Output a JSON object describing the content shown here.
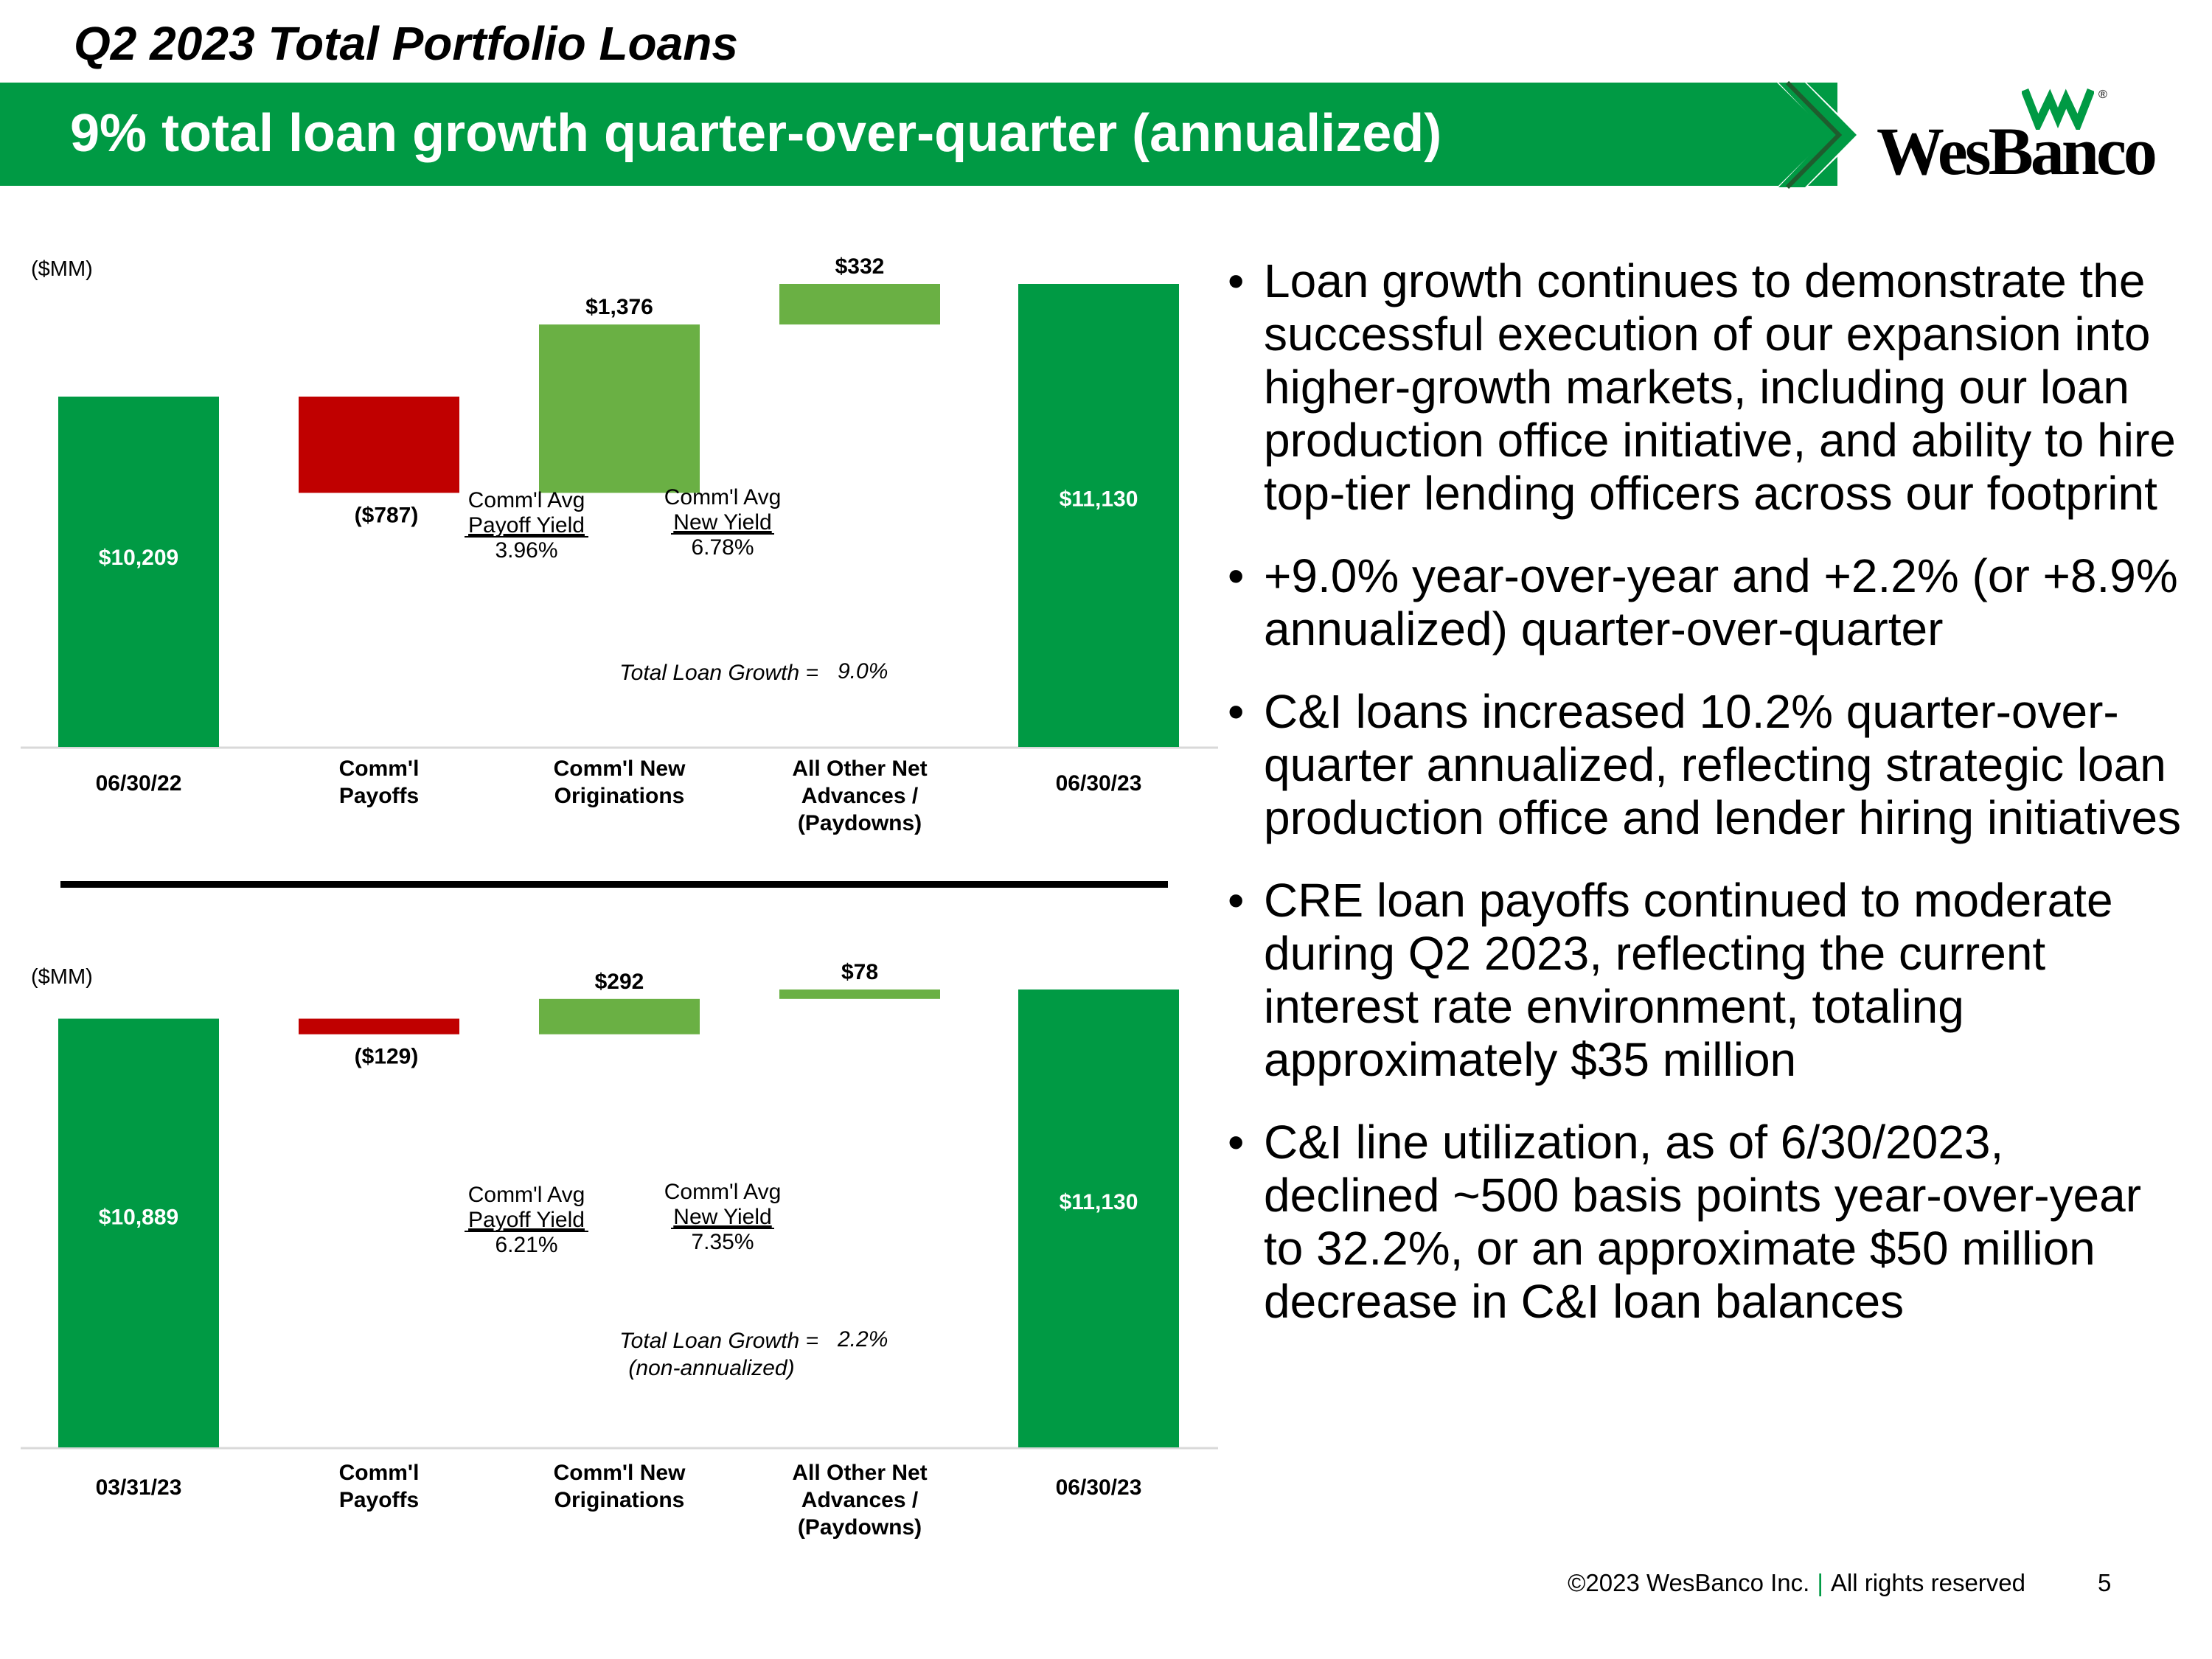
{
  "header": {
    "title": "Q2 2023 Total Portfolio Loans",
    "banner": "9% total loan growth quarter-over-quarter (annualized)"
  },
  "logo": {
    "text": "WesBanco",
    "reg": "®"
  },
  "colors": {
    "brand_green": "#009a44",
    "increase_green": "#6ab044",
    "decrease_red": "#c00000",
    "total_bar": "#009a44"
  },
  "chart_data": [
    {
      "type": "waterfall",
      "unit_label": "($MM)",
      "categories": [
        "06/30/22",
        "Comm'l Payoffs",
        "Comm'l New Originations",
        "All Other Net Advances / (Paydowns)",
        "06/30/23"
      ],
      "category_lines": [
        [
          "06/30/22"
        ],
        [
          "Comm'l",
          "Payoffs"
        ],
        [
          "Comm'l New",
          "Originations"
        ],
        [
          "All Other Net",
          "Advances /",
          "(Paydowns)"
        ],
        [
          "06/30/23"
        ]
      ],
      "values": [
        10209,
        -787,
        1376,
        332,
        11130
      ],
      "value_labels": [
        "$10,209",
        "($787)",
        "$1,376",
        "$332",
        "$11,130"
      ],
      "kinds": [
        "total",
        "decrease",
        "increase",
        "increase",
        "total"
      ],
      "yaxis_min": 0,
      "annotations": {
        "payoff_title": "Comm'l Avg",
        "payoff_sub": "Payoff Yield",
        "payoff_value": "3.96%",
        "new_title": "Comm'l Avg",
        "new_sub": "New Yield",
        "new_value": "6.78%",
        "growth_label": "Total Loan Growth =",
        "growth_value": "9.0%",
        "growth_note": ""
      }
    },
    {
      "type": "waterfall",
      "unit_label": "($MM)",
      "categories": [
        "03/31/23",
        "Comm'l Payoffs",
        "Comm'l New Originations",
        "All Other Net Advances / (Paydowns)",
        "06/30/23"
      ],
      "category_lines": [
        [
          "03/31/23"
        ],
        [
          "Comm'l",
          "Payoffs"
        ],
        [
          "Comm'l New",
          "Originations"
        ],
        [
          "All Other Net",
          "Advances /",
          "(Paydowns)"
        ],
        [
          "06/30/23"
        ]
      ],
      "values": [
        10889,
        -129,
        292,
        78,
        11130
      ],
      "value_labels": [
        "$10,889",
        "($129)",
        "$292",
        "$78",
        "$11,130"
      ],
      "kinds": [
        "total",
        "decrease",
        "increase",
        "increase",
        "total"
      ],
      "yaxis_min": 0,
      "annotations": {
        "payoff_title": "Comm'l Avg",
        "payoff_sub": "Payoff Yield",
        "payoff_value": "6.21%",
        "new_title": "Comm'l Avg",
        "new_sub": "New Yield",
        "new_value": "7.35%",
        "growth_label": "Total Loan Growth =",
        "growth_value": "2.2%",
        "growth_note": "(non-annualized)"
      }
    }
  ],
  "bullets": [
    "Loan growth continues to demonstrate the successful execution of our expansion into higher-growth markets, including our loan production office initiative, and ability to hire top-tier lending officers across our footprint",
    "+9.0% year-over-year and +2.2% (or +8.9% annualized) quarter-over-quarter",
    "C&I loans increased 10.2% quarter-over-quarter annualized, reflecting strategic loan production office and lender hiring initiatives",
    "CRE loan payoffs continued to moderate during Q2 2023, reflecting the current interest rate environment, totaling approximately $35 million",
    "C&I line utilization, as of 6/30/2023, declined ~500 basis points year-over-year to 32.2%, or an approximate $50 million decrease in C&I loan balances"
  ],
  "footer": {
    "copyright": "©2023 WesBanco Inc.",
    "separator": "|",
    "rights": "All rights reserved",
    "page": "5"
  }
}
